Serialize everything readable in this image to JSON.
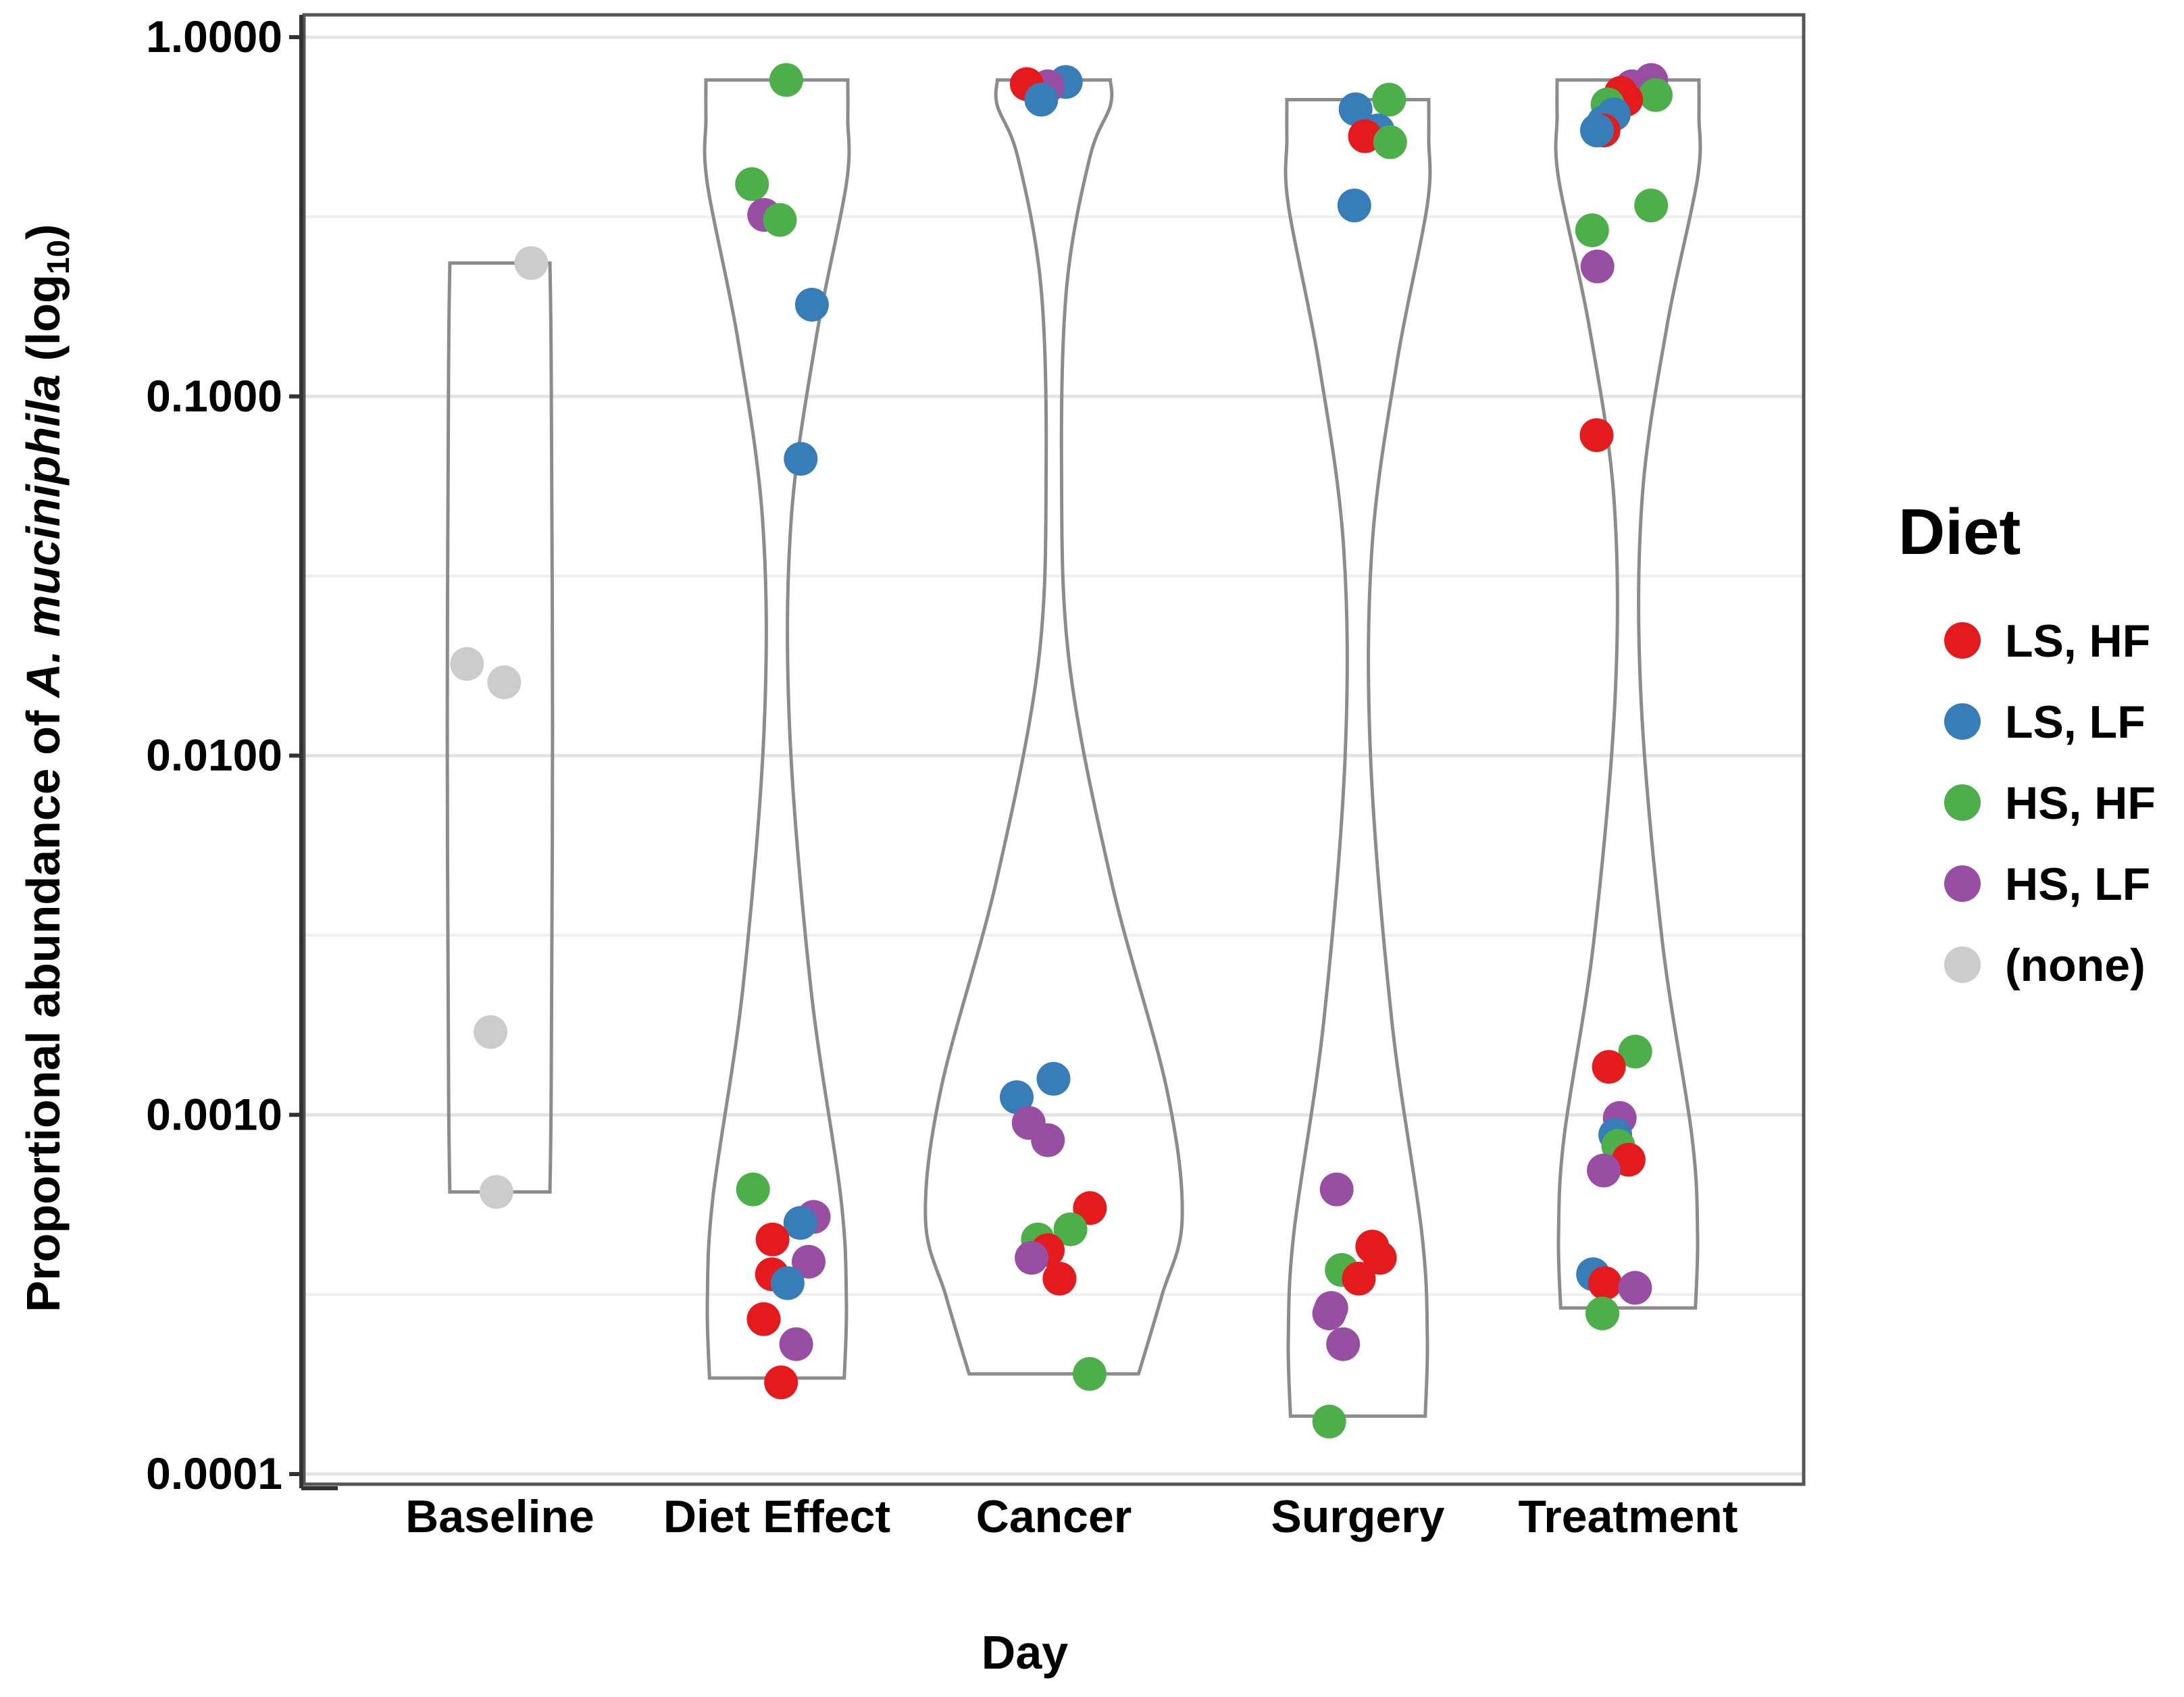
{
  "chart_data": {
    "type": "violin",
    "title": "",
    "xlabel": "Day",
    "ylabel": {
      "prefix": "Proportional abundance of ",
      "italic": "A. muciniphila",
      "suffix": " (log",
      "subscript": "10",
      "close": ")"
    },
    "yscale": "log10",
    "ylim": [
      0.0001,
      1.0
    ],
    "yticks": [
      0.0001,
      0.001,
      0.01,
      0.1,
      1.0
    ],
    "ytick_labels": [
      "0.0001",
      "0.0010",
      "0.0100",
      "0.1000",
      "1.0000"
    ],
    "grid": true,
    "categories": [
      "Baseline",
      "Diet Effect",
      "Cancer",
      "Surgery",
      "Treatment"
    ],
    "legend": {
      "title": "Diet",
      "position": "right",
      "items": [
        {
          "label": "LS, HF",
          "color": "#E41A1C"
        },
        {
          "label": "LS, LF",
          "color": "#377EB8"
        },
        {
          "label": "HS, HF",
          "color": "#4DAF4A"
        },
        {
          "label": "HS, LF",
          "color": "#984EA3"
        },
        {
          "label": "(none)",
          "color": "#CCCCCC"
        }
      ]
    },
    "violins": [
      {
        "category": "Baseline",
        "min": 0.00061,
        "max": 0.235,
        "shape": "box"
      },
      {
        "category": "Diet Effect",
        "min": 0.000185,
        "max": 0.76,
        "shape": "bimodal-top-bottom"
      },
      {
        "category": "Cancer",
        "min": 0.00019,
        "max": 0.76,
        "shape": "bulb-bottom"
      },
      {
        "category": "Surgery",
        "min": 0.000145,
        "max": 0.67,
        "shape": "bimodal-top-bottom"
      },
      {
        "category": "Treatment",
        "min": 0.00029,
        "max": 0.76,
        "shape": "bimodal-top-bottom"
      }
    ],
    "points": [
      {
        "category": "Baseline",
        "diet": "(none)",
        "value": 0.235
      },
      {
        "category": "Baseline",
        "diet": "(none)",
        "value": 0.018
      },
      {
        "category": "Baseline",
        "diet": "(none)",
        "value": 0.016
      },
      {
        "category": "Baseline",
        "diet": "(none)",
        "value": 0.0017
      },
      {
        "category": "Baseline",
        "diet": "(none)",
        "value": 0.00061
      },
      {
        "category": "Diet Effect",
        "diet": "HS, HF",
        "value": 0.76
      },
      {
        "category": "Diet Effect",
        "diet": "HS, HF",
        "value": 0.39
      },
      {
        "category": "Diet Effect",
        "diet": "HS, LF",
        "value": 0.32
      },
      {
        "category": "Diet Effect",
        "diet": "HS, HF",
        "value": 0.31
      },
      {
        "category": "Diet Effect",
        "diet": "LS, LF",
        "value": 0.18
      },
      {
        "category": "Diet Effect",
        "diet": "LS, LF",
        "value": 0.067
      },
      {
        "category": "Diet Effect",
        "diet": "HS, HF",
        "value": 0.00062
      },
      {
        "category": "Diet Effect",
        "diet": "HS, LF",
        "value": 0.00052
      },
      {
        "category": "Diet Effect",
        "diet": "LS, LF",
        "value": 0.0005
      },
      {
        "category": "Diet Effect",
        "diet": "LS, HF",
        "value": 0.00045
      },
      {
        "category": "Diet Effect",
        "diet": "HS, LF",
        "value": 0.00039
      },
      {
        "category": "Diet Effect",
        "diet": "LS, HF",
        "value": 0.00036
      },
      {
        "category": "Diet Effect",
        "diet": "LS, LF",
        "value": 0.00034
      },
      {
        "category": "Diet Effect",
        "diet": "LS, HF",
        "value": 0.00027
      },
      {
        "category": "Diet Effect",
        "diet": "HS, LF",
        "value": 0.00023
      },
      {
        "category": "Diet Effect",
        "diet": "LS, HF",
        "value": 0.00018
      },
      {
        "category": "Cancer",
        "diet": "LS, LF",
        "value": 0.75
      },
      {
        "category": "Cancer",
        "diet": "HS, LF",
        "value": 0.73
      },
      {
        "category": "Cancer",
        "diet": "LS, HF",
        "value": 0.74
      },
      {
        "category": "Cancer",
        "diet": "LS, LF",
        "value": 0.67
      },
      {
        "category": "Cancer",
        "diet": "LS, LF",
        "value": 0.00126
      },
      {
        "category": "Cancer",
        "diet": "LS, LF",
        "value": 0.00112
      },
      {
        "category": "Cancer",
        "diet": "HS, LF",
        "value": 0.00095
      },
      {
        "category": "Cancer",
        "diet": "HS, LF",
        "value": 0.00085
      },
      {
        "category": "Cancer",
        "diet": "LS, HF",
        "value": 0.00055
      },
      {
        "category": "Cancer",
        "diet": "HS, HF",
        "value": 0.00048
      },
      {
        "category": "Cancer",
        "diet": "HS, HF",
        "value": 0.00045
      },
      {
        "category": "Cancer",
        "diet": "LS, HF",
        "value": 0.00042
      },
      {
        "category": "Cancer",
        "diet": "HS, LF",
        "value": 0.0004
      },
      {
        "category": "Cancer",
        "diet": "LS, HF",
        "value": 0.00035
      },
      {
        "category": "Cancer",
        "diet": "HS, HF",
        "value": 0.00019
      },
      {
        "category": "Surgery",
        "diet": "HS, HF",
        "value": 0.67
      },
      {
        "category": "Surgery",
        "diet": "LS, LF",
        "value": 0.63
      },
      {
        "category": "Surgery",
        "diet": "LS, LF",
        "value": 0.55
      },
      {
        "category": "Surgery",
        "diet": "LS, HF",
        "value": 0.53
      },
      {
        "category": "Surgery",
        "diet": "HS, HF",
        "value": 0.51
      },
      {
        "category": "Surgery",
        "diet": "LS, LF",
        "value": 0.34
      },
      {
        "category": "Surgery",
        "diet": "HS, LF",
        "value": 0.00062
      },
      {
        "category": "Surgery",
        "diet": "LS, HF",
        "value": 0.00043
      },
      {
        "category": "Surgery",
        "diet": "LS, HF",
        "value": 0.0004
      },
      {
        "category": "Surgery",
        "diet": "HS, HF",
        "value": 0.00037
      },
      {
        "category": "Surgery",
        "diet": "LS, HF",
        "value": 0.00035
      },
      {
        "category": "Surgery",
        "diet": "HS, LF",
        "value": 0.00029
      },
      {
        "category": "Surgery",
        "diet": "HS, LF",
        "value": 0.00028
      },
      {
        "category": "Surgery",
        "diet": "HS, LF",
        "value": 0.00023
      },
      {
        "category": "Surgery",
        "diet": "HS, HF",
        "value": 0.00014
      },
      {
        "category": "Treatment",
        "diet": "HS, LF",
        "value": 0.76
      },
      {
        "category": "Treatment",
        "diet": "HS, LF",
        "value": 0.73
      },
      {
        "category": "Treatment",
        "diet": "LS, HF",
        "value": 0.7
      },
      {
        "category": "Treatment",
        "diet": "HS, HF",
        "value": 0.69
      },
      {
        "category": "Treatment",
        "diet": "LS, HF",
        "value": 0.67
      },
      {
        "category": "Treatment",
        "diet": "HS, HF",
        "value": 0.65
      },
      {
        "category": "Treatment",
        "diet": "LS, LF",
        "value": 0.61
      },
      {
        "category": "Treatment",
        "diet": "LS, LF",
        "value": 0.58
      },
      {
        "category": "Treatment",
        "diet": "LS, HF",
        "value": 0.55
      },
      {
        "category": "Treatment",
        "diet": "LS, LF",
        "value": 0.55
      },
      {
        "category": "Treatment",
        "diet": "HS, HF",
        "value": 0.34
      },
      {
        "category": "Treatment",
        "diet": "HS, HF",
        "value": 0.29
      },
      {
        "category": "Treatment",
        "diet": "HS, LF",
        "value": 0.23
      },
      {
        "category": "Treatment",
        "diet": "LS, HF",
        "value": 0.078
      },
      {
        "category": "Treatment",
        "diet": "HS, HF",
        "value": 0.0015
      },
      {
        "category": "Treatment",
        "diet": "LS, HF",
        "value": 0.00136
      },
      {
        "category": "Treatment",
        "diet": "HS, LF",
        "value": 0.00098
      },
      {
        "category": "Treatment",
        "diet": "LS, LF",
        "value": 0.00088
      },
      {
        "category": "Treatment",
        "diet": "HS, HF",
        "value": 0.00082
      },
      {
        "category": "Treatment",
        "diet": "LS, HF",
        "value": 0.00075
      },
      {
        "category": "Treatment",
        "diet": "HS, LF",
        "value": 0.0007
      },
      {
        "category": "Treatment",
        "diet": "LS, LF",
        "value": 0.00036
      },
      {
        "category": "Treatment",
        "diet": "LS, HF",
        "value": 0.00034
      },
      {
        "category": "Treatment",
        "diet": "HS, LF",
        "value": 0.00033
      },
      {
        "category": "Treatment",
        "diet": "HS, HF",
        "value": 0.00028
      }
    ]
  }
}
